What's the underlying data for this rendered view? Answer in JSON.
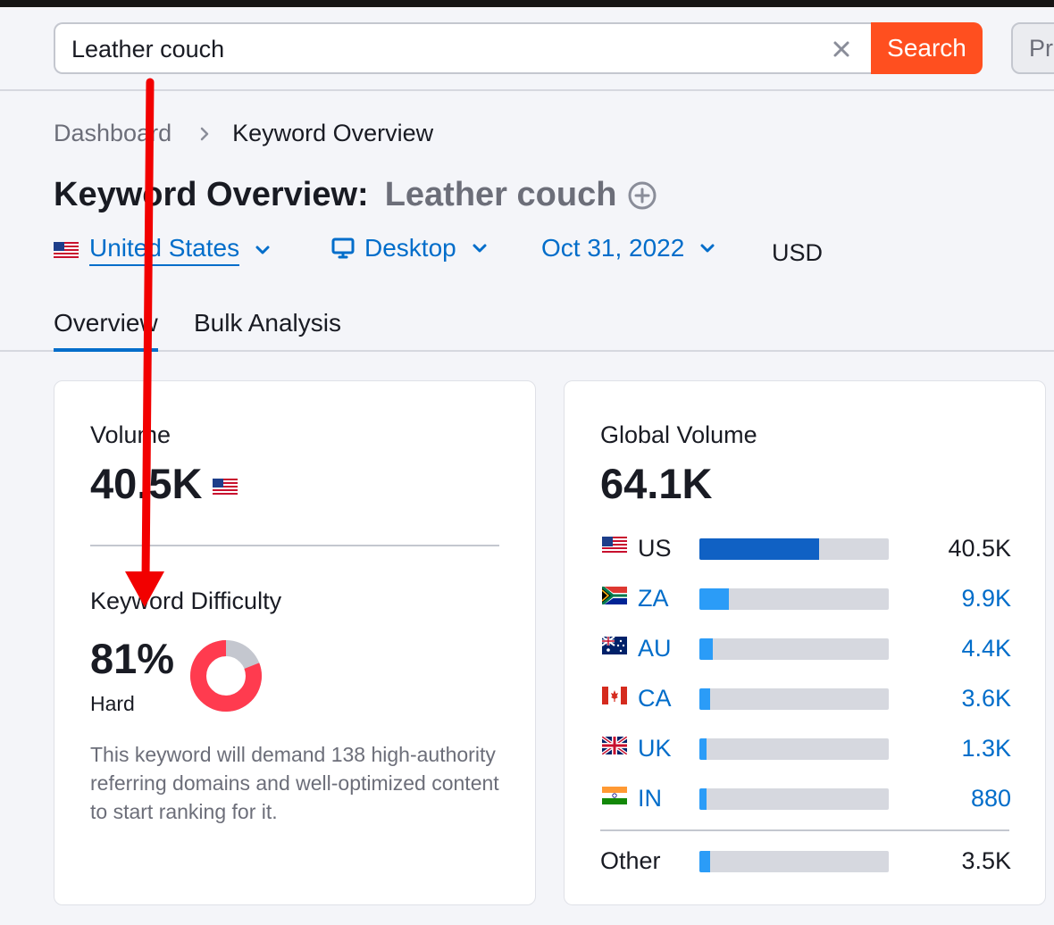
{
  "search": {
    "value": "Leather couch",
    "button_label": "Search",
    "secondary_button_label": "Pr"
  },
  "breadcrumb": {
    "root": "Dashboard",
    "current": "Keyword Overview"
  },
  "title": {
    "prefix": "Keyword Overview:",
    "keyword": "Leather couch"
  },
  "filters": {
    "country": "United States",
    "device": "Desktop",
    "date": "Oct 31, 2022",
    "currency": "USD"
  },
  "tabs": [
    {
      "label": "Overview",
      "active": true
    },
    {
      "label": "Bulk Analysis",
      "active": false
    }
  ],
  "volume_card": {
    "volume_label": "Volume",
    "volume_value": "40.5K",
    "kd_label": "Keyword Difficulty",
    "kd_value": "81%",
    "kd_percent": 81,
    "kd_level": "Hard",
    "kd_description": "This keyword will demand 138 high-authority referring domains and well-optimized content to start ranking for it."
  },
  "global_card": {
    "label": "Global Volume",
    "value": "64.1K",
    "countries": [
      {
        "code": "US",
        "value": "40.5K",
        "share": 0.63,
        "link": false
      },
      {
        "code": "ZA",
        "value": "9.9K",
        "share": 0.155,
        "link": true
      },
      {
        "code": "AU",
        "value": "4.4K",
        "share": 0.069,
        "link": true
      },
      {
        "code": "CA",
        "value": "3.6K",
        "share": 0.056,
        "link": true
      },
      {
        "code": "UK",
        "value": "1.3K",
        "share": 0.02,
        "link": true
      },
      {
        "code": "IN",
        "value": "880",
        "share": 0.014,
        "link": true
      }
    ],
    "other": {
      "label": "Other",
      "value": "3.5K",
      "share": 0.055
    }
  },
  "colors": {
    "accent_blue": "#006dca",
    "search_orange": "#ff4f1f",
    "kd_red": "#ff3b4f",
    "us_bar": "#1061c4",
    "other_bar": "#2b9cf7",
    "annotation_arrow": "#f20000"
  }
}
